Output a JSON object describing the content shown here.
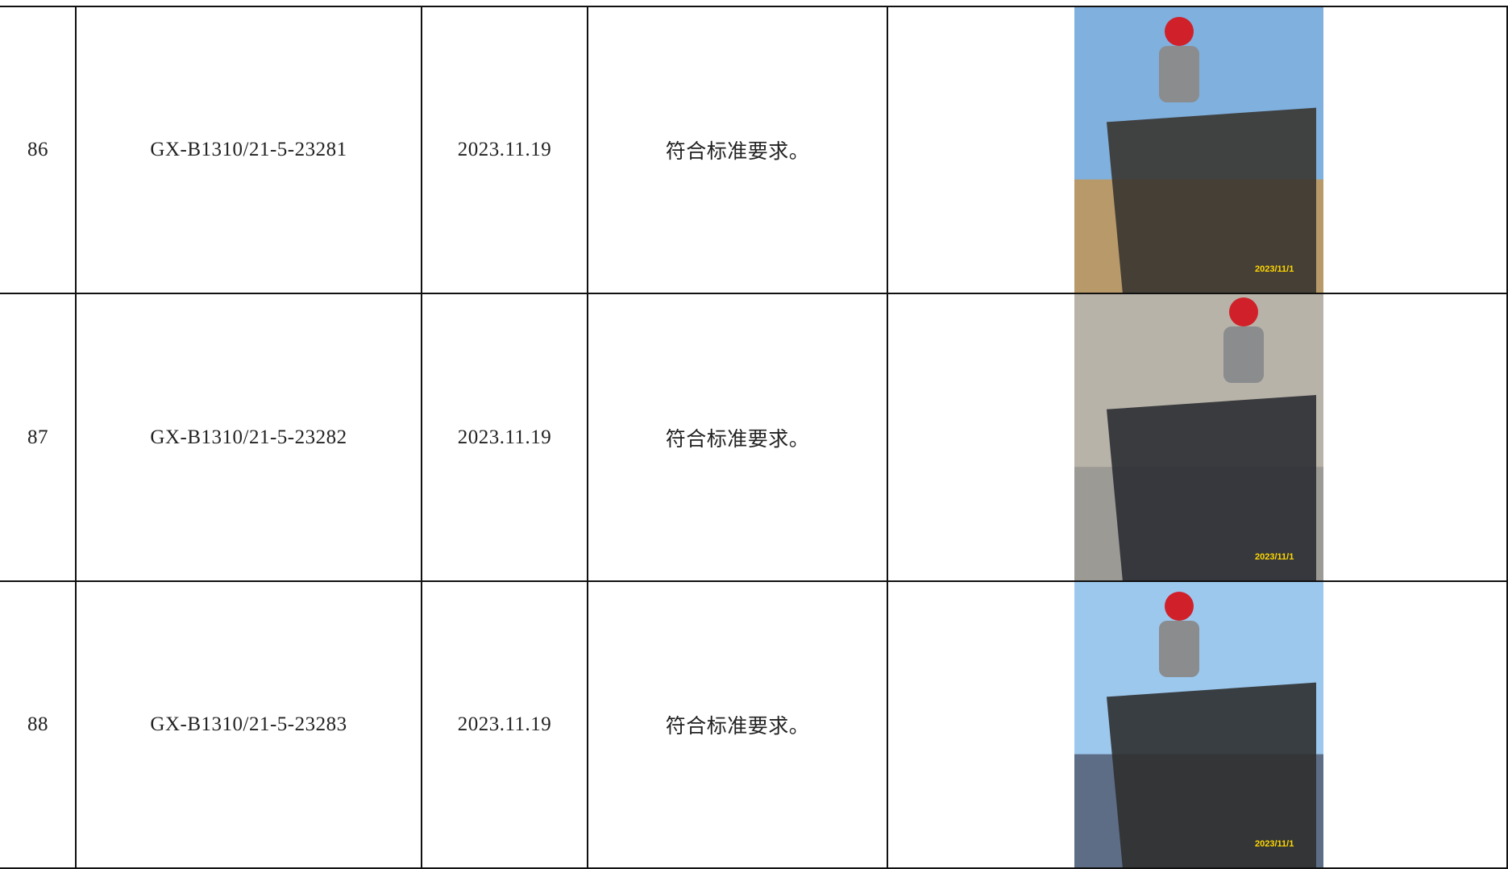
{
  "table": {
    "rows": [
      {
        "no": 86,
        "code": "GX-B1310/21-5-23281",
        "date": "2023.11.19",
        "result": "符合标准要求。",
        "photo_stamp": "2023/11/1"
      },
      {
        "no": 87,
        "code": "GX-B1310/21-5-23282",
        "date": "2023.11.19",
        "result": "符合标准要求。",
        "photo_stamp": "2023/11/1"
      },
      {
        "no": 88,
        "code": "GX-B1310/21-5-23283",
        "date": "2023.11.19",
        "result": "符合标准要求。",
        "photo_stamp": "2023/11/1"
      }
    ]
  }
}
